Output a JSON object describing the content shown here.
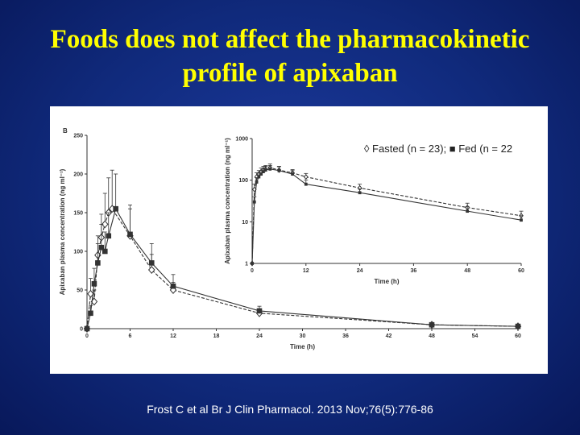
{
  "title": {
    "line1": "Foods does not affect the pharmacokinetic",
    "line2": "profile of apixaban"
  },
  "citation": "Frost C et al Br J Clin Pharmacol. 2013 Nov;76(5):776-86",
  "legend": "◊ Fasted (n = 23); ■ Fed (n = 22",
  "colors": {
    "background": "#102a7c",
    "title": "#ffff00",
    "line": "#333333"
  },
  "chart_data": [
    {
      "type": "line",
      "panel_label": "B",
      "xlabel": "Time (h)",
      "ylabel": "Apixaban plasma concentration (ng ml⁻¹)",
      "xlim": [
        0,
        60
      ],
      "ylim": [
        0,
        250
      ],
      "xticks": [
        "0",
        "6",
        "12",
        "18",
        "24",
        "30",
        "36",
        "42",
        "48",
        "54",
        "60"
      ],
      "yticks": [
        "0",
        "50",
        "100",
        "150",
        "200",
        "250"
      ],
      "grid": false,
      "series": [
        {
          "marker": "diamond-open",
          "x": [
            0,
            0.5,
            1,
            1.5,
            2,
            2.5,
            3,
            3.5,
            6,
            9,
            12,
            24,
            48,
            60
          ],
          "y": [
            0,
            45,
            35,
            95,
            118,
            135,
            150,
            155,
            120,
            76,
            50,
            20,
            5,
            3
          ],
          "err": [
            0,
            20,
            15,
            25,
            30,
            40,
            45,
            50,
            35,
            20,
            10,
            5,
            1,
            1
          ]
        },
        {
          "marker": "square-filled",
          "x": [
            0,
            0.5,
            1,
            1.5,
            2,
            2.5,
            3,
            4,
            6,
            9,
            12,
            24,
            48,
            60
          ],
          "y": [
            0,
            20,
            58,
            85,
            105,
            100,
            120,
            155,
            122,
            85,
            55,
            23,
            5,
            3
          ],
          "err": [
            0,
            10,
            20,
            25,
            30,
            25,
            30,
            45,
            38,
            25,
            15,
            6,
            1,
            1
          ]
        }
      ]
    },
    {
      "type": "line",
      "inset": true,
      "yscale": "log",
      "xlabel": "Time (h)",
      "ylabel": "Apixaban plasma concentration (ng ml⁻¹)",
      "xlim": [
        0,
        60
      ],
      "ylim": [
        1,
        1000
      ],
      "xticks": [
        "0",
        "12",
        "24",
        "36",
        "48",
        "60"
      ],
      "yticks": [
        "1",
        "10",
        "100",
        "1000"
      ],
      "grid": false,
      "series": [
        {
          "marker": "diamond-open",
          "x": [
            0,
            0.5,
            1,
            1.5,
            2,
            2.5,
            3,
            4,
            6,
            9,
            12,
            24,
            48,
            60
          ],
          "y": [
            1,
            60,
            120,
            140,
            160,
            175,
            185,
            200,
            175,
            150,
            120,
            65,
            22,
            14
          ],
          "err": [
            0,
            20,
            30,
            30,
            35,
            40,
            40,
            45,
            40,
            30,
            25,
            15,
            6,
            4
          ]
        },
        {
          "marker": "square-filled",
          "x": [
            0,
            0.5,
            1,
            1.5,
            2,
            2.5,
            3,
            4,
            6,
            9,
            12,
            24,
            48,
            60
          ],
          "y": [
            1,
            30,
            90,
            120,
            140,
            160,
            175,
            185,
            170,
            140,
            80,
            50,
            18,
            11
          ],
          "err": [
            0,
            10,
            25,
            30,
            30,
            35,
            40,
            40,
            40,
            30,
            20,
            12,
            5,
            3
          ]
        }
      ]
    }
  ]
}
